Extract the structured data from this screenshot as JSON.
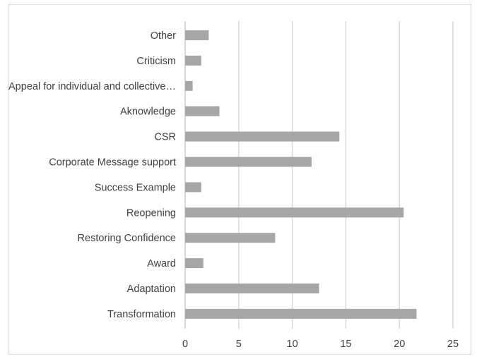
{
  "chart_data": {
    "type": "bar",
    "orientation": "horizontal",
    "categories": [
      "Other",
      "Criticism",
      "Appeal for individual and collective…",
      "Aknowledge",
      "CSR",
      "Corporate Message support",
      "Success Example",
      "Reopening",
      "Restoring Confidence",
      "Award",
      "Adaptation",
      "Transformation"
    ],
    "values": [
      2.2,
      1.5,
      0.7,
      3.2,
      14.4,
      11.8,
      1.5,
      20.4,
      8.4,
      1.7,
      12.5,
      21.6
    ],
    "xlim": [
      0,
      25
    ],
    "xticks": [
      "0",
      "5",
      "10",
      "15",
      "20",
      "25"
    ],
    "grid": "vertical",
    "bar_color": "#a6a6a6",
    "grid_color": "#d9d9d9",
    "title": "",
    "xlabel": "",
    "ylabel": ""
  }
}
